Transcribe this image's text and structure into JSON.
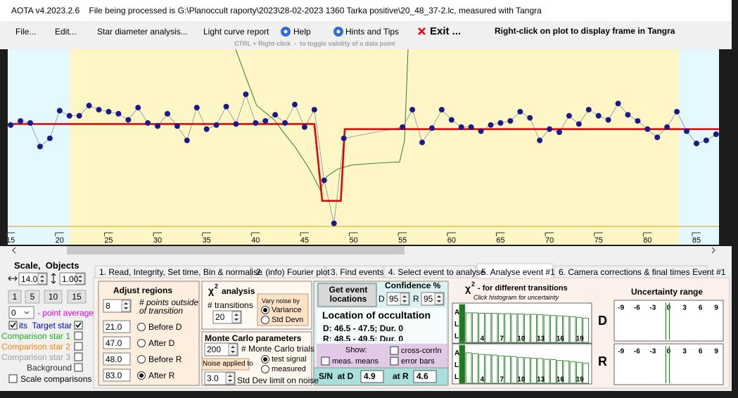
{
  "window_title": "AOTA v4.2023.2.6    File being processed is G:\\Planoccult raporty\\2023\\28-02-2023 1360 Tarka positive\\20_48_37-2.lc, measured with Tangra",
  "menu": {
    "items": [
      "File...",
      "Edit...",
      "Star diameter analysis...",
      "Light curve report",
      "Help",
      "Hints and Tips",
      "Exit ..."
    ],
    "hint": "Right-click on plot to display frame in Tangra"
  },
  "plot": {
    "hint": "CTRL + Right-click  -  to toggle validity of a data point",
    "xlim": [
      14.7,
      87.3
    ],
    "ylim": [
      0,
      1.73
    ],
    "xticks": [
      15,
      20,
      25,
      30,
      35,
      40,
      45,
      50,
      55,
      60,
      65,
      70,
      75,
      80,
      85
    ],
    "points": {
      "color": "#1a1a8c",
      "x": [
        15,
        16,
        17,
        18,
        19,
        20,
        21,
        22,
        23,
        24,
        25,
        26,
        27,
        28,
        29,
        30,
        31,
        32,
        33,
        34,
        35,
        36,
        37,
        38,
        39,
        40,
        41,
        42,
        43,
        44,
        45,
        46,
        47,
        48,
        49,
        55,
        56,
        57,
        58,
        59,
        60,
        61,
        62,
        63,
        64,
        65,
        66,
        67,
        68,
        69,
        70,
        71,
        72,
        73,
        74,
        75,
        76,
        77,
        78,
        79,
        80,
        81,
        82,
        83,
        84,
        85,
        86,
        87
      ],
      "y": [
        0.99,
        1.03,
        1.01,
        0.78,
        0.86,
        1.13,
        1.08,
        1.08,
        1.18,
        1.14,
        1.12,
        1.1,
        1.04,
        1.16,
        1.01,
        0.98,
        1.1,
        0.98,
        0.84,
        1.16,
        0.95,
        0.99,
        1.17,
        1.0,
        1.29,
        1.01,
        1.03,
        1.09,
        1.01,
        1.19,
        0.97,
        1.14,
        0.45,
        0.03,
        0.86,
        0.97,
        1.14,
        0.82,
        0.96,
        1.14,
        1.04,
        0.97,
        0.97,
        0.93,
        0.99,
        1.01,
        1.03,
        1.12,
        1.06,
        0.84,
        0.95,
        0.92,
        1.08,
        1.0,
        1.14,
        1.08,
        1.04,
        1.2,
        1.09,
        1.03,
        0.95,
        0.87,
        0.97,
        1.12,
        0.93,
        0.81,
        0.84,
        0.9
      ]
    },
    "model": {
      "color": "#e00000",
      "x": [
        14.7,
        46.0,
        46.8,
        48.7,
        49.1,
        87.3
      ],
      "y": [
        1.0,
        1.0,
        0.25,
        0.25,
        0.95,
        0.95
      ]
    },
    "smoothed": {
      "color": "#2e7d32",
      "x": [
        37.96,
        39.04,
        40.11,
        41.91,
        42.99,
        44.07,
        45.5,
        46.58,
        47.3,
        48.38,
        49.81,
        52.69,
        54.7,
        55.2,
        55.56
      ],
      "y": [
        1.73,
        1.45,
        1.18,
        1.04,
        0.9,
        0.77,
        0.56,
        0.36,
        0.49,
        0.56,
        0.6,
        0.62,
        0.63,
        0.84,
        1.73
      ]
    }
  },
  "scale_objects": {
    "title": "Scale,  Objects",
    "scale": "14.0",
    "step": "1.00",
    "buttons": [
      "1",
      "5",
      "10",
      "15"
    ],
    "average": "0",
    "average_label": "- point average",
    "objects": [
      {
        "label": "its  Target star",
        "color": "#0000cc",
        "checked": true,
        "left_checked": true
      },
      {
        "label": "Comparison star 1",
        "color": "#22aa22",
        "checked": false
      },
      {
        "label": "Comparison star 2",
        "color": "#ff8000",
        "checked": false
      },
      {
        "label": "Comparison star 3",
        "color": "#a0a0a0",
        "checked": false
      },
      {
        "label": "Background",
        "color": "#303030",
        "checked": false
      }
    ],
    "scale_comparisons": {
      "label": "Scale comparisons",
      "checked": false
    }
  },
  "tabs": {
    "items": [
      "1. Read, Integrity, Set time, Bin & normalise",
      "2. (info) Fourier plot",
      "3. Find events",
      "4. Select event to analyse",
      "5. Analyse event #1",
      "6. Camera corrections & final times Event #1"
    ],
    "selected": 4
  },
  "adjust_regions": {
    "title": "Adjust regions",
    "points": "8",
    "points_label": "# points outside of transition",
    "rows": [
      {
        "value": "21.0",
        "label": "Before D",
        "selected": false
      },
      {
        "value": "47.0",
        "label": "After D",
        "selected": false
      },
      {
        "value": "48.0",
        "label": "Before R",
        "selected": false
      },
      {
        "value": "83.0",
        "label": "After R",
        "selected": true
      }
    ]
  },
  "chi2_analysis": {
    "symbol": "χ",
    "sup": "2",
    "title": "analysis",
    "transitions_label": "# transitions",
    "transitions": "20",
    "noise_title": "Vary noise by",
    "noise_options": [
      {
        "label": "Variance",
        "selected": true
      },
      {
        "label": "Std Devn",
        "selected": false
      }
    ]
  },
  "monte_carlo": {
    "title": "Monte Carlo parameters",
    "trials": "200",
    "trials_label": "# Monte Carlo trials",
    "noise_label": "Noise applied to",
    "noise_options": [
      {
        "label": "test signal",
        "selected": true
      },
      {
        "label": "measured",
        "selected": false
      }
    ],
    "limit": "3.0",
    "limit_label": "Std Dev limit on noise"
  },
  "event_locations": {
    "button": "Get event locations",
    "confidence_title": "Confidence %",
    "d_label": "D",
    "d_value": "95",
    "r_label": "R",
    "r_value": "95",
    "location_title": "Location of occultation",
    "d_result": "D: 46.5 - 47.5; Dur. 0",
    "r_result": "R: 48.5 - 49.5; Dur. 0",
    "show_label": "Show:",
    "show_options": [
      {
        "label": "cross-corrln",
        "checked": false
      },
      {
        "label": "meas. means",
        "checked": false
      },
      {
        "label": "error bars",
        "checked": false
      }
    ],
    "sn_label": "S/N  at D",
    "sn_d": "4.9",
    "sn_r_label": "at R",
    "sn_r": "4.6"
  },
  "chi2_transitions": {
    "symbol": "χ",
    "sup": "2",
    "title": "- for different transitions",
    "hint": "Click histogram for uncertainty",
    "side_letters": [
      "A",
      "L",
      "L"
    ],
    "xticks": [
      4,
      7,
      10,
      13,
      16,
      19
    ],
    "ylim": [
      0,
      100
    ],
    "histograms": [
      {
        "name": "D",
        "values": [
          100,
          78,
          78,
          77,
          77,
          77,
          76,
          76,
          75,
          75,
          74,
          74,
          73,
          72,
          71,
          70,
          69,
          68,
          66,
          64
        ]
      },
      {
        "name": "R",
        "values": [
          100,
          80,
          78,
          76,
          75,
          74,
          72,
          71,
          70,
          68,
          67,
          66,
          65,
          63,
          62,
          60,
          59,
          57,
          55,
          53
        ]
      }
    ]
  },
  "uncertainty": {
    "title": "Uncertainty range",
    "xlim": [
      -10.3,
      10.3
    ],
    "xticks": [
      -9,
      -6,
      -3,
      0,
      3,
      6,
      9
    ],
    "marker": 0
  }
}
